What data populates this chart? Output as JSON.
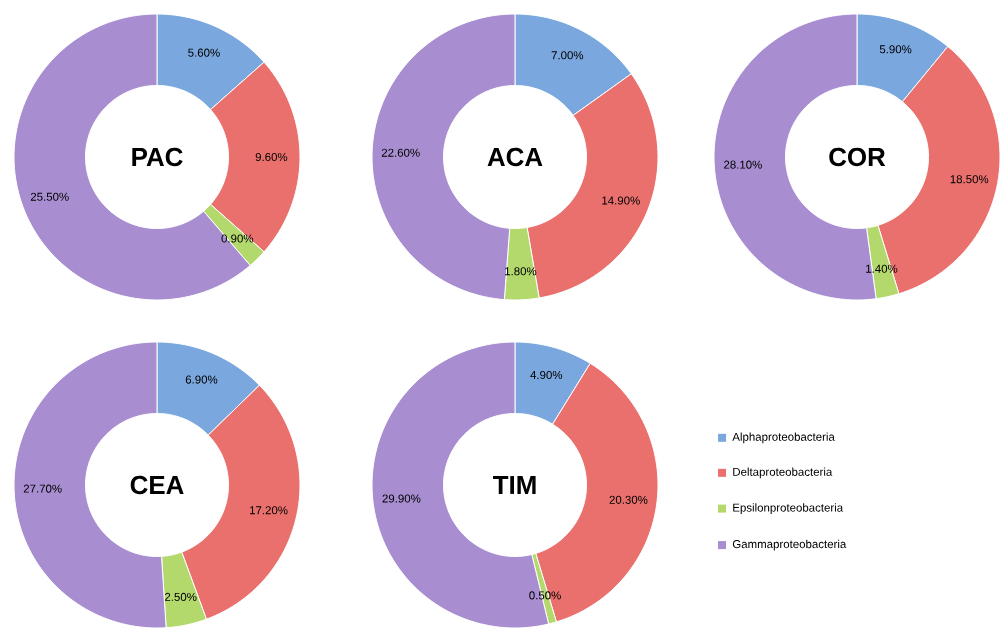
{
  "chart_data": [
    {
      "type": "donut",
      "title": "**PAC**",
      "categories": [
        null,
        null,
        null,
        null
      ],
      "values": [
        5.6,
        9.6,
        0.9,
        25.5
      ],
      "value_labels": [
        "5.60%",
        "9.60%",
        "0.90%",
        "25.50%"
      ],
      "colors": [
        "#7ba7df",
        "#e9706d",
        "#b3d86b",
        "#a88ed0"
      ],
      "legend": false
    },
    {
      "type": "donut",
      "title": "**ACA**",
      "categories": [
        null,
        null,
        null,
        null
      ],
      "values": [
        7.0,
        14.9,
        1.8,
        22.6
      ],
      "value_labels": [
        "7.00%",
        "14.90%",
        "1.80%",
        "22.60%"
      ],
      "colors": [
        "#7ba7df",
        "#e9706d",
        "#b3d86b",
        "#a88ed0"
      ],
      "legend": false
    },
    {
      "type": "donut",
      "title": "**COR**",
      "categories": [
        null,
        null,
        null,
        null
      ],
      "values": [
        5.9,
        18.5,
        1.4,
        28.1
      ],
      "value_labels": [
        "5.90%",
        "18.50%",
        "1.40%",
        "28.10%"
      ],
      "colors": [
        "#7ba7df",
        "#e9706d",
        "#b3d86b",
        "#a88ed0"
      ],
      "legend": false
    },
    {
      "type": "donut",
      "title": "**CEA**",
      "categories": [
        null,
        null,
        null,
        null
      ],
      "values": [
        6.9,
        17.2,
        2.5,
        27.7
      ],
      "value_labels": [
        "6.90%",
        "17.20%",
        "2.50%",
        "27.70%"
      ],
      "colors": [
        "#7ba7df",
        "#e9706d",
        "#b3d86b",
        "#a88ed0"
      ],
      "legend": false
    },
    {
      "type": "donut",
      "title": "**TIM**",
      "categories": [
        "Alphaproteobacteria",
        "Deltaproteobacteria",
        "Epsilonproteobacteria",
        "Gammaproteobacteria"
      ],
      "values": [
        4.9,
        20.3,
        0.5,
        29.9
      ],
      "value_labels": [
        "4.90%",
        "20.30%",
        "0.50%",
        "29.90%"
      ],
      "colors": [
        "#7ba7df",
        "#e9706d",
        "#b3d86b",
        "#a88ed0"
      ],
      "legend": "right"
    }
  ]
}
